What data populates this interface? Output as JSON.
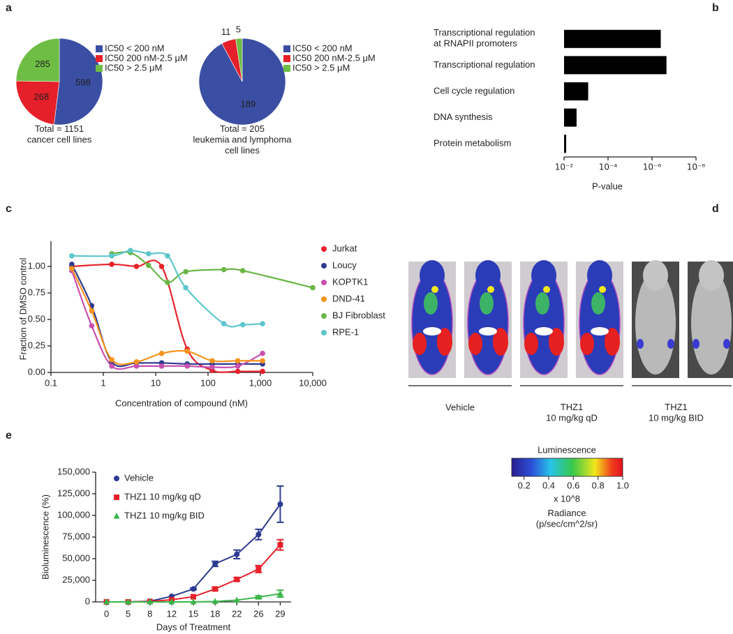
{
  "panel_labels": [
    "a",
    "b",
    "c",
    "d",
    "e"
  ],
  "chart_data": [
    {
      "type": "pie",
      "values": [
        598,
        268,
        285
      ],
      "labels": [
        "IC50 < 200 nM",
        "IC50  200 nM-2.5 μM",
        "IC50 > 2.5 μM"
      ],
      "colors": [
        "#3a4ea3",
        "#e5202a",
        "#6ebd45"
      ],
      "caption": "Total = 1151\ncancer cell lines"
    },
    {
      "type": "pie",
      "values": [
        189,
        11,
        5
      ],
      "labels": [
        "IC50 < 200 nM",
        "IC50  200 nM-2.5 μM",
        "IC50 > 2.5 μM"
      ],
      "colors": [
        "#3a4ea3",
        "#e5202a",
        "#6ebd45"
      ],
      "caption": "Total = 205\nleukemia and lymphoma\ncell lines"
    },
    {
      "type": "bar",
      "orientation": "horizontal",
      "log": true,
      "categories": [
        "Transcriptional regulation\nat RNAPII promoters",
        "Transcriptional regulation",
        "Cell cycle regulation",
        "DNA synthesis",
        "Protein metabolism"
      ],
      "values": [
        4e-07,
        2.2e-07,
        0.0008,
        0.0027,
        0.008
      ],
      "color": "#000000",
      "xlabel": "P-value",
      "xlim": [
        0.01,
        1e-08
      ],
      "xticks": [
        {
          "value": 0.01,
          "label": "10⁻²"
        },
        {
          "value": 0.0001,
          "label": "10⁻⁴"
        },
        {
          "value": 1e-06,
          "label": "10⁻⁶"
        },
        {
          "value": 1e-08,
          "label": "10⁻⁸"
        }
      ]
    },
    {
      "type": "scatter",
      "log_x": true,
      "fit_curves": true,
      "xlabel": "Concentration of compound (nM)",
      "ylabel": "Fraction of DMSO control",
      "xlim": [
        0.1,
        10000
      ],
      "xticks": [
        0.1,
        1,
        10,
        100,
        {
          "value": 1000,
          "label": "1,000"
        },
        {
          "value": 10000,
          "label": "10,000"
        }
      ],
      "ylim": [
        0,
        1.2
      ],
      "yticks": [
        {
          "value": 0,
          "label": "0.00"
        },
        0.25,
        {
          "value": 0.5,
          "label": "0.50"
        },
        0.75,
        {
          "value": 1,
          "label": "1.00"
        }
      ],
      "series": [
        {
          "name": "Jurkat",
          "color": "#e8202a",
          "x": [
            0.25,
            1.45,
            4.3,
            13,
            40,
            120,
            370,
            1100
          ],
          "values": [
            1.0,
            1.02,
            1.0,
            1.0,
            0.22,
            0.02,
            0.01,
            0.01
          ]
        },
        {
          "name": "Loucy",
          "color": "#2e3b91",
          "x": [
            0.25,
            0.6,
            1.45,
            4.3,
            13,
            40,
            120,
            370,
            1100
          ],
          "values": [
            1.02,
            0.63,
            0.1,
            0.09,
            0.09,
            0.08,
            0.08,
            0.08,
            0.08
          ]
        },
        {
          "name": "KOPTK1",
          "color": "#c94fb0",
          "x": [
            0.25,
            0.6,
            1.45,
            4.3,
            13,
            40,
            120,
            370,
            1100
          ],
          "values": [
            0.96,
            0.44,
            0.06,
            0.06,
            0.06,
            0.06,
            0.05,
            0.06,
            0.18
          ]
        },
        {
          "name": "DND-41",
          "color": "#f7941d",
          "x": [
            0.25,
            0.6,
            1.45,
            4.3,
            13,
            40,
            120,
            370,
            1100
          ],
          "values": [
            0.98,
            0.58,
            0.12,
            0.1,
            0.18,
            0.2,
            0.11,
            0.11,
            0.11
          ]
        },
        {
          "name": "BJ Fibroblast",
          "color": "#6ab547",
          "x": [
            1.45,
            3.3,
            7.3,
            16.8,
            37.5,
            200,
            460,
            10000
          ],
          "values": [
            1.12,
            1.13,
            1.01,
            0.85,
            0.95,
            0.97,
            0.96,
            0.8
          ]
        },
        {
          "name": "RPE-1",
          "color": "#5bc6cc",
          "x": [
            0.25,
            1.45,
            3.3,
            7.3,
            16.8,
            37.5,
            200,
            460,
            1100
          ],
          "values": [
            1.1,
            1.1,
            1.15,
            1.12,
            1.1,
            0.8,
            0.46,
            0.45,
            0.46
          ]
        }
      ]
    },
    {
      "type": "line",
      "xlabel": "Days of Treatment",
      "ylabel": "Bioluminescence (%)",
      "categories": [
        "0",
        "5",
        "8",
        "12",
        "15",
        "18",
        "22",
        "26",
        "29"
      ],
      "ylim": [
        0,
        150000
      ],
      "yticks": [
        0,
        {
          "value": 25000,
          "label": "25,000"
        },
        {
          "value": 50000,
          "label": "50,000"
        },
        {
          "value": 75000,
          "label": "75,000"
        },
        {
          "value": 100000,
          "label": "100,000"
        },
        {
          "value": 125000,
          "label": "125,000"
        },
        {
          "value": 150000,
          "label": "150,000"
        }
      ],
      "series": [
        {
          "name": "Vehicle",
          "color": "#2e3b91",
          "marker": "circle",
          "values": [
            0,
            0,
            800,
            6500,
            15000,
            44000,
            55000,
            78000,
            113000
          ],
          "errors": [
            0,
            0,
            0,
            0,
            1000,
            3000,
            5000,
            6000,
            21000
          ]
        },
        {
          "name": "THZ1 10 mg/kg qD",
          "color": "#e8202a",
          "marker": "square",
          "values": [
            0,
            0,
            500,
            2500,
            6000,
            15000,
            26000,
            38000,
            66000
          ],
          "errors": [
            0,
            0,
            0,
            0,
            0,
            1500,
            2000,
            4000,
            6000
          ]
        },
        {
          "name": "THZ1 10 mg/kg BID",
          "color": "#39b54a",
          "marker": "triangle",
          "values": [
            0,
            0,
            0,
            0,
            0,
            500,
            2000,
            5500,
            9500
          ],
          "errors": [
            0,
            0,
            0,
            0,
            0,
            0,
            0,
            1500,
            4000
          ]
        }
      ]
    }
  ],
  "figure_d": {
    "groups": [
      "Vehicle",
      "THZ1\n10 mg/kg qD",
      "THZ1\n10 mg/kg BID"
    ],
    "colorbar": {
      "title": "Luminescence",
      "lim": [
        0.1,
        1.0
      ],
      "ticks": [
        0.2,
        0.4,
        0.6,
        0.8,
        {
          "value": 1,
          "label": "1.0"
        }
      ],
      "multiplier": "x 10^8",
      "label": "Radiance\n(p/sec/cm^2/sr)"
    }
  }
}
